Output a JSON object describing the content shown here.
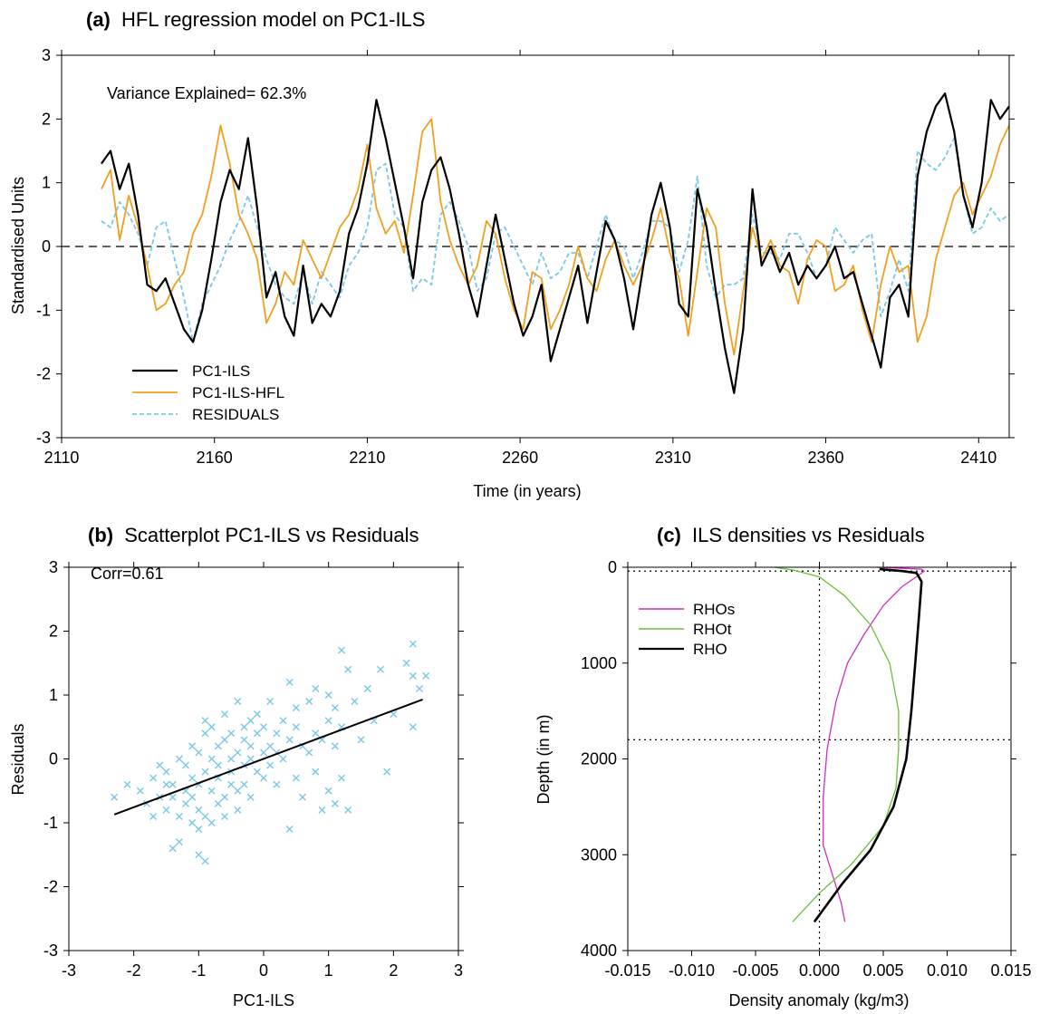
{
  "figure": {
    "panels": [
      "a",
      "b",
      "c"
    ]
  },
  "colors": {
    "pc1_ils": "#000000",
    "pc1_ils_hfl": "#f0a020",
    "residuals": "#79c7ea",
    "rhos": "#cc2fc4",
    "rhot": "#6abf3a",
    "rho": "#000000",
    "axis": "#000000"
  },
  "chart_data": [
    {
      "id": "a",
      "type": "line",
      "title_tag": "(a)",
      "title": "HFL regression model on PC1-ILS",
      "xlabel": "Time (in years)",
      "ylabel": "Standardised Units",
      "xlim": [
        2110,
        2420
      ],
      "ylim": [
        -3,
        3
      ],
      "xticks": [
        2110,
        2160,
        2210,
        2260,
        2310,
        2360,
        2410
      ],
      "yticks": [
        -3,
        -2,
        -1,
        0,
        1,
        2,
        3
      ],
      "annotation": "Variance Explained= 62.3%",
      "reference_line": {
        "y": 0,
        "style": "dashed"
      },
      "legend_position": "bottom-left",
      "x": [
        2123,
        2126,
        2129,
        2132,
        2135,
        2138,
        2141,
        2144,
        2147,
        2150,
        2153,
        2156,
        2159,
        2162,
        2165,
        2168,
        2171,
        2174,
        2177,
        2180,
        2183,
        2186,
        2189,
        2192,
        2195,
        2198,
        2201,
        2204,
        2207,
        2210,
        2213,
        2216,
        2219,
        2222,
        2225,
        2228,
        2231,
        2234,
        2237,
        2240,
        2243,
        2246,
        2249,
        2252,
        2255,
        2258,
        2261,
        2264,
        2267,
        2270,
        2273,
        2276,
        2279,
        2282,
        2285,
        2288,
        2291,
        2294,
        2297,
        2300,
        2303,
        2306,
        2309,
        2312,
        2315,
        2318,
        2321,
        2324,
        2327,
        2330,
        2333,
        2336,
        2339,
        2342,
        2345,
        2348,
        2351,
        2354,
        2357,
        2360,
        2363,
        2366,
        2369,
        2372,
        2375,
        2378,
        2381,
        2384,
        2387,
        2390,
        2393,
        2396,
        2399,
        2402,
        2405,
        2408,
        2411,
        2414,
        2417,
        2420
      ],
      "series": [
        {
          "name": "PC1-ILS",
          "style": "solid",
          "values": [
            1.3,
            1.5,
            0.9,
            1.3,
            0.5,
            -0.6,
            -0.7,
            -0.5,
            -0.9,
            -1.3,
            -1.5,
            -1.0,
            -0.2,
            0.7,
            1.2,
            0.9,
            1.7,
            0.6,
            -0.8,
            -0.4,
            -1.1,
            -1.4,
            -0.3,
            -1.2,
            -0.9,
            -1.1,
            -0.7,
            0.2,
            0.6,
            1.3,
            2.3,
            1.7,
            1.0,
            0.3,
            -0.5,
            0.7,
            1.2,
            1.4,
            0.9,
            0.2,
            -0.6,
            -1.1,
            -0.3,
            0.5,
            -0.2,
            -0.9,
            -1.4,
            -1.1,
            -0.6,
            -1.8,
            -1.3,
            -0.8,
            -0.3,
            -1.2,
            -0.4,
            0.4,
            0.1,
            -0.5,
            -1.3,
            -0.4,
            0.5,
            1.0,
            0.3,
            -0.9,
            -1.1,
            0.9,
            0.3,
            -0.7,
            -1.6,
            -2.3,
            -1.3,
            0.9,
            -0.3,
            0.0,
            -0.4,
            -0.1,
            -0.6,
            -0.3,
            -0.5,
            -0.3,
            0.0,
            -0.5,
            -0.4,
            -0.9,
            -1.4,
            -1.9,
            -0.8,
            -0.6,
            -1.1,
            1.1,
            1.8,
            2.2,
            2.4,
            1.8,
            0.8,
            0.3,
            1.0,
            2.3,
            2.0,
            2.2
          ]
        },
        {
          "name": "PC1-ILS-HFL",
          "style": "solid",
          "values": [
            0.9,
            1.2,
            0.1,
            0.8,
            0.3,
            -0.3,
            -1.0,
            -0.9,
            -0.6,
            -0.4,
            0.2,
            0.5,
            1.1,
            1.9,
            1.3,
            0.5,
            0.2,
            -0.2,
            -1.2,
            -0.9,
            -0.4,
            -0.6,
            0.1,
            -0.2,
            -0.5,
            -0.1,
            0.3,
            0.5,
            0.9,
            1.6,
            0.6,
            0.2,
            0.4,
            -0.1,
            0.8,
            1.8,
            2.0,
            0.7,
            0.1,
            -0.3,
            -0.6,
            -0.3,
            0.4,
            0.2,
            -0.5,
            -1.0,
            -1.3,
            -0.4,
            -0.5,
            -1.3,
            -1.0,
            -0.6,
            0.0,
            -0.5,
            -0.7,
            -0.2,
            0.1,
            -0.3,
            -0.6,
            -0.3,
            0.1,
            0.6,
            -0.1,
            -0.5,
            -1.4,
            -0.4,
            0.6,
            0.3,
            -0.9,
            -1.7,
            -0.7,
            0.3,
            -0.2,
            0.1,
            -0.3,
            -0.4,
            -0.9,
            -0.2,
            0.1,
            0.0,
            -0.7,
            -0.6,
            -0.3,
            -1.0,
            -1.5,
            -0.6,
            0.0,
            -0.4,
            -0.3,
            -1.5,
            -1.1,
            -0.2,
            0.3,
            0.8,
            1.0,
            0.5,
            0.8,
            1.1,
            1.6,
            1.9
          ]
        },
        {
          "name": "RESIDUALS",
          "style": "dashed",
          "values": [
            0.4,
            0.3,
            0.7,
            0.5,
            0.2,
            -0.3,
            0.3,
            0.4,
            -0.2,
            -0.8,
            -1.5,
            -0.9,
            -0.6,
            -0.3,
            0.1,
            0.4,
            0.8,
            0.3,
            -0.2,
            -0.6,
            -0.8,
            -0.9,
            -0.4,
            -0.9,
            -0.4,
            -0.6,
            -0.8,
            -0.3,
            -0.1,
            0.3,
            1.2,
            1.3,
            0.5,
            0.3,
            -0.7,
            -0.5,
            -0.6,
            0.5,
            0.7,
            0.4,
            0.0,
            -0.7,
            -0.5,
            0.2,
            0.3,
            0.0,
            -0.3,
            -0.6,
            -0.1,
            -0.5,
            -0.4,
            -0.1,
            -0.1,
            -0.5,
            0.0,
            0.5,
            0.1,
            0.0,
            -0.5,
            -0.1,
            0.4,
            0.4,
            0.3,
            -0.4,
            0.1,
            1.1,
            -0.3,
            -0.8,
            -0.6,
            -0.6,
            -0.5,
            0.5,
            -0.1,
            -0.1,
            -0.2,
            0.2,
            0.2,
            -0.1,
            -0.5,
            -0.3,
            0.3,
            0.1,
            -0.1,
            0.1,
            0.2,
            -1.1,
            -0.7,
            -0.2,
            -0.7,
            1.5,
            1.3,
            1.2,
            1.4,
            1.7,
            0.8,
            0.2,
            0.3,
            0.6,
            0.4,
            0.5
          ]
        }
      ]
    },
    {
      "id": "b",
      "type": "scatter",
      "title_tag": "(b)",
      "title": "Scatterplot PC1-ILS vs Residuals",
      "xlabel": "PC1-ILS",
      "ylabel": "Residuals",
      "xlim": [
        -3,
        3
      ],
      "ylim": [
        -3,
        3
      ],
      "xticks": [
        -3,
        -2,
        -1,
        0,
        1,
        2,
        3
      ],
      "yticks": [
        -3,
        -2,
        -1,
        0,
        1,
        2,
        3
      ],
      "annotation": "Corr=0.61",
      "marker": "x",
      "points": [
        [
          -2.3,
          -0.6
        ],
        [
          -2.1,
          -0.4
        ],
        [
          -1.9,
          -0.5
        ],
        [
          -1.8,
          -0.7
        ],
        [
          -1.7,
          -0.3
        ],
        [
          -1.7,
          -0.9
        ],
        [
          -1.6,
          -0.1
        ],
        [
          -1.6,
          -0.6
        ],
        [
          -1.5,
          -0.4
        ],
        [
          -1.5,
          -0.8
        ],
        [
          -1.5,
          -0.2
        ],
        [
          -1.4,
          -0.6
        ],
        [
          -1.4,
          -1.4
        ],
        [
          -1.4,
          -0.4
        ],
        [
          -1.3,
          -1.3
        ],
        [
          -1.3,
          0.0
        ],
        [
          -1.3,
          -0.9
        ],
        [
          -1.2,
          -0.5
        ],
        [
          -1.2,
          -0.7
        ],
        [
          -1.2,
          -0.1
        ],
        [
          -1.1,
          -1.0
        ],
        [
          -1.1,
          -0.3
        ],
        [
          -1.1,
          -0.6
        ],
        [
          -1.1,
          0.2
        ],
        [
          -1.0,
          -1.5
        ],
        [
          -1.0,
          -1.1
        ],
        [
          -1.0,
          -0.4
        ],
        [
          -1.0,
          0.1
        ],
        [
          -1.0,
          -0.8
        ],
        [
          -0.9,
          -1.6
        ],
        [
          -0.9,
          -0.9
        ],
        [
          -0.9,
          0.4
        ],
        [
          -0.9,
          -0.2
        ],
        [
          -0.9,
          0.6
        ],
        [
          -0.8,
          -0.5
        ],
        [
          -0.8,
          0.0
        ],
        [
          -0.8,
          -1.0
        ],
        [
          -0.8,
          0.5
        ],
        [
          -0.7,
          -0.3
        ],
        [
          -0.7,
          -0.7
        ],
        [
          -0.7,
          0.2
        ],
        [
          -0.7,
          -0.1
        ],
        [
          -0.6,
          0.3
        ],
        [
          -0.6,
          -0.6
        ],
        [
          -0.6,
          -0.9
        ],
        [
          -0.6,
          0.7
        ],
        [
          -0.5,
          0.0
        ],
        [
          -0.5,
          -0.4
        ],
        [
          -0.5,
          0.4
        ],
        [
          -0.5,
          -0.2
        ],
        [
          -0.4,
          0.9
        ],
        [
          -0.4,
          -0.5
        ],
        [
          -0.4,
          0.1
        ],
        [
          -0.4,
          -0.8
        ],
        [
          -0.3,
          0.5
        ],
        [
          -0.3,
          -0.1
        ],
        [
          -0.3,
          0.3
        ],
        [
          -0.3,
          -0.4
        ],
        [
          -0.2,
          0.6
        ],
        [
          -0.2,
          0.0
        ],
        [
          -0.2,
          -0.6
        ],
        [
          -0.2,
          0.2
        ],
        [
          -0.1,
          0.4
        ],
        [
          -0.1,
          -0.2
        ],
        [
          -0.1,
          0.7
        ],
        [
          0.0,
          0.1
        ],
        [
          0.0,
          -0.3
        ],
        [
          0.0,
          0.5
        ],
        [
          0.1,
          0.2
        ],
        [
          0.1,
          -0.1
        ],
        [
          0.1,
          0.9
        ],
        [
          0.2,
          0.4
        ],
        [
          0.2,
          -0.4
        ],
        [
          0.2,
          0.1
        ],
        [
          0.3,
          0.6
        ],
        [
          0.3,
          0.0
        ],
        [
          0.4,
          1.2
        ],
        [
          0.4,
          -1.1
        ],
        [
          0.4,
          0.3
        ],
        [
          0.5,
          0.5
        ],
        [
          0.5,
          -0.3
        ],
        [
          0.5,
          0.8
        ],
        [
          0.6,
          0.2
        ],
        [
          0.6,
          -0.6
        ],
        [
          0.7,
          0.9
        ],
        [
          0.7,
          0.1
        ],
        [
          0.8,
          0.4
        ],
        [
          0.8,
          -0.2
        ],
        [
          0.8,
          1.1
        ],
        [
          0.9,
          -0.8
        ],
        [
          0.9,
          0.3
        ],
        [
          1.0,
          0.6
        ],
        [
          1.0,
          -0.5
        ],
        [
          1.0,
          1.0
        ],
        [
          1.1,
          0.2
        ],
        [
          1.1,
          -0.7
        ],
        [
          1.1,
          0.8
        ],
        [
          1.2,
          1.7
        ],
        [
          1.2,
          0.5
        ],
        [
          1.2,
          -0.3
        ],
        [
          1.3,
          1.4
        ],
        [
          1.3,
          -0.8
        ],
        [
          1.4,
          0.9
        ],
        [
          1.5,
          0.3
        ],
        [
          1.6,
          1.1
        ],
        [
          1.7,
          0.6
        ],
        [
          1.8,
          1.4
        ],
        [
          1.9,
          -0.2
        ],
        [
          2.0,
          0.7
        ],
        [
          2.2,
          1.5
        ],
        [
          2.3,
          1.3
        ],
        [
          2.3,
          0.5
        ],
        [
          2.4,
          1.1
        ],
        [
          2.5,
          1.3
        ],
        [
          2.3,
          1.8
        ]
      ],
      "fit_line": {
        "x": [
          -2.3,
          2.45
        ],
        "y": [
          -0.87,
          0.93
        ]
      }
    },
    {
      "id": "c",
      "type": "line",
      "title_tag": "(c)",
      "title": "ILS densities vs Residuals",
      "xlabel": "Density anomaly (kg/m3)",
      "ylabel": "Depth (in m)",
      "xlim": [
        -0.015,
        0.015
      ],
      "ylim": [
        4000,
        0
      ],
      "xticks": [
        -0.015,
        -0.01,
        -0.005,
        0.0,
        0.005,
        0.01,
        0.015
      ],
      "xtick_labels": [
        "-0.015",
        "-0.010",
        "-0.005",
        "0.000",
        "0.005",
        "0.010",
        "0.015"
      ],
      "yticks": [
        0,
        1000,
        2000,
        3000,
        4000
      ],
      "reference_lines": {
        "x": [
          0.0
        ],
        "y": [
          40,
          1800
        ],
        "style": "dotted"
      },
      "legend_position": "top-left",
      "series": [
        {
          "name": "RHOs",
          "points": [
            [
              0.0045,
              0
            ],
            [
              0.008,
              20
            ],
            [
              0.0082,
              40
            ],
            [
              0.0078,
              80
            ],
            [
              0.0065,
              200
            ],
            [
              0.005,
              400
            ],
            [
              0.0035,
              700
            ],
            [
              0.0022,
              1000
            ],
            [
              0.0013,
              1400
            ],
            [
              0.0006,
              1900
            ],
            [
              0.0003,
              2400
            ],
            [
              0.0003,
              2900
            ],
            [
              0.001,
              3200
            ],
            [
              0.0017,
              3500
            ],
            [
              0.002,
              3700
            ]
          ]
        },
        {
          "name": "RHOt",
          "points": [
            [
              -0.0035,
              0
            ],
            [
              -0.002,
              30
            ],
            [
              0.0,
              100
            ],
            [
              0.002,
              300
            ],
            [
              0.004,
              600
            ],
            [
              0.0055,
              1000
            ],
            [
              0.0062,
              1500
            ],
            [
              0.0062,
              1900
            ],
            [
              0.006,
              2300
            ],
            [
              0.005,
              2700
            ],
            [
              0.0025,
              3100
            ],
            [
              0.0,
              3400
            ],
            [
              -0.0021,
              3700
            ]
          ]
        },
        {
          "name": "RHO",
          "points": [
            [
              0.0047,
              20
            ],
            [
              0.0065,
              40
            ],
            [
              0.0076,
              60
            ],
            [
              0.008,
              150
            ],
            [
              0.0078,
              500
            ],
            [
              0.0075,
              1000
            ],
            [
              0.0072,
              1500
            ],
            [
              0.0068,
              2000
            ],
            [
              0.0058,
              2500
            ],
            [
              0.004,
              2950
            ],
            [
              0.0018,
              3300
            ],
            [
              -0.0004,
              3700
            ]
          ]
        }
      ]
    }
  ]
}
